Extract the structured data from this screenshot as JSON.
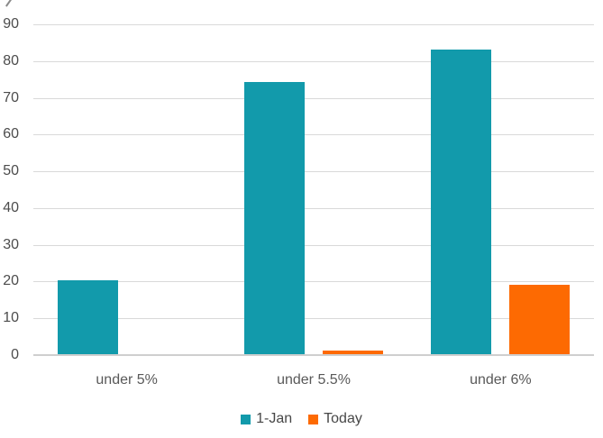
{
  "chart_data": {
    "type": "bar",
    "title": "",
    "xlabel": "",
    "ylabel": "",
    "categories": [
      "under 5%",
      "under 5.5%",
      "under 6%"
    ],
    "series": [
      {
        "name": "1-Jan",
        "color": "#129aab",
        "values": [
          20,
          74,
          83
        ]
      },
      {
        "name": "Today",
        "color": "#fd6a02",
        "values": [
          0,
          1,
          19
        ]
      }
    ],
    "ylim": [
      0,
      90
    ],
    "yticks": [
      0,
      10,
      20,
      30,
      40,
      50,
      60,
      70,
      80,
      90
    ],
    "grid": true,
    "gridline_color": "#d9d9d9",
    "axis_label_color": "#595959",
    "legend_position": "bottom"
  }
}
